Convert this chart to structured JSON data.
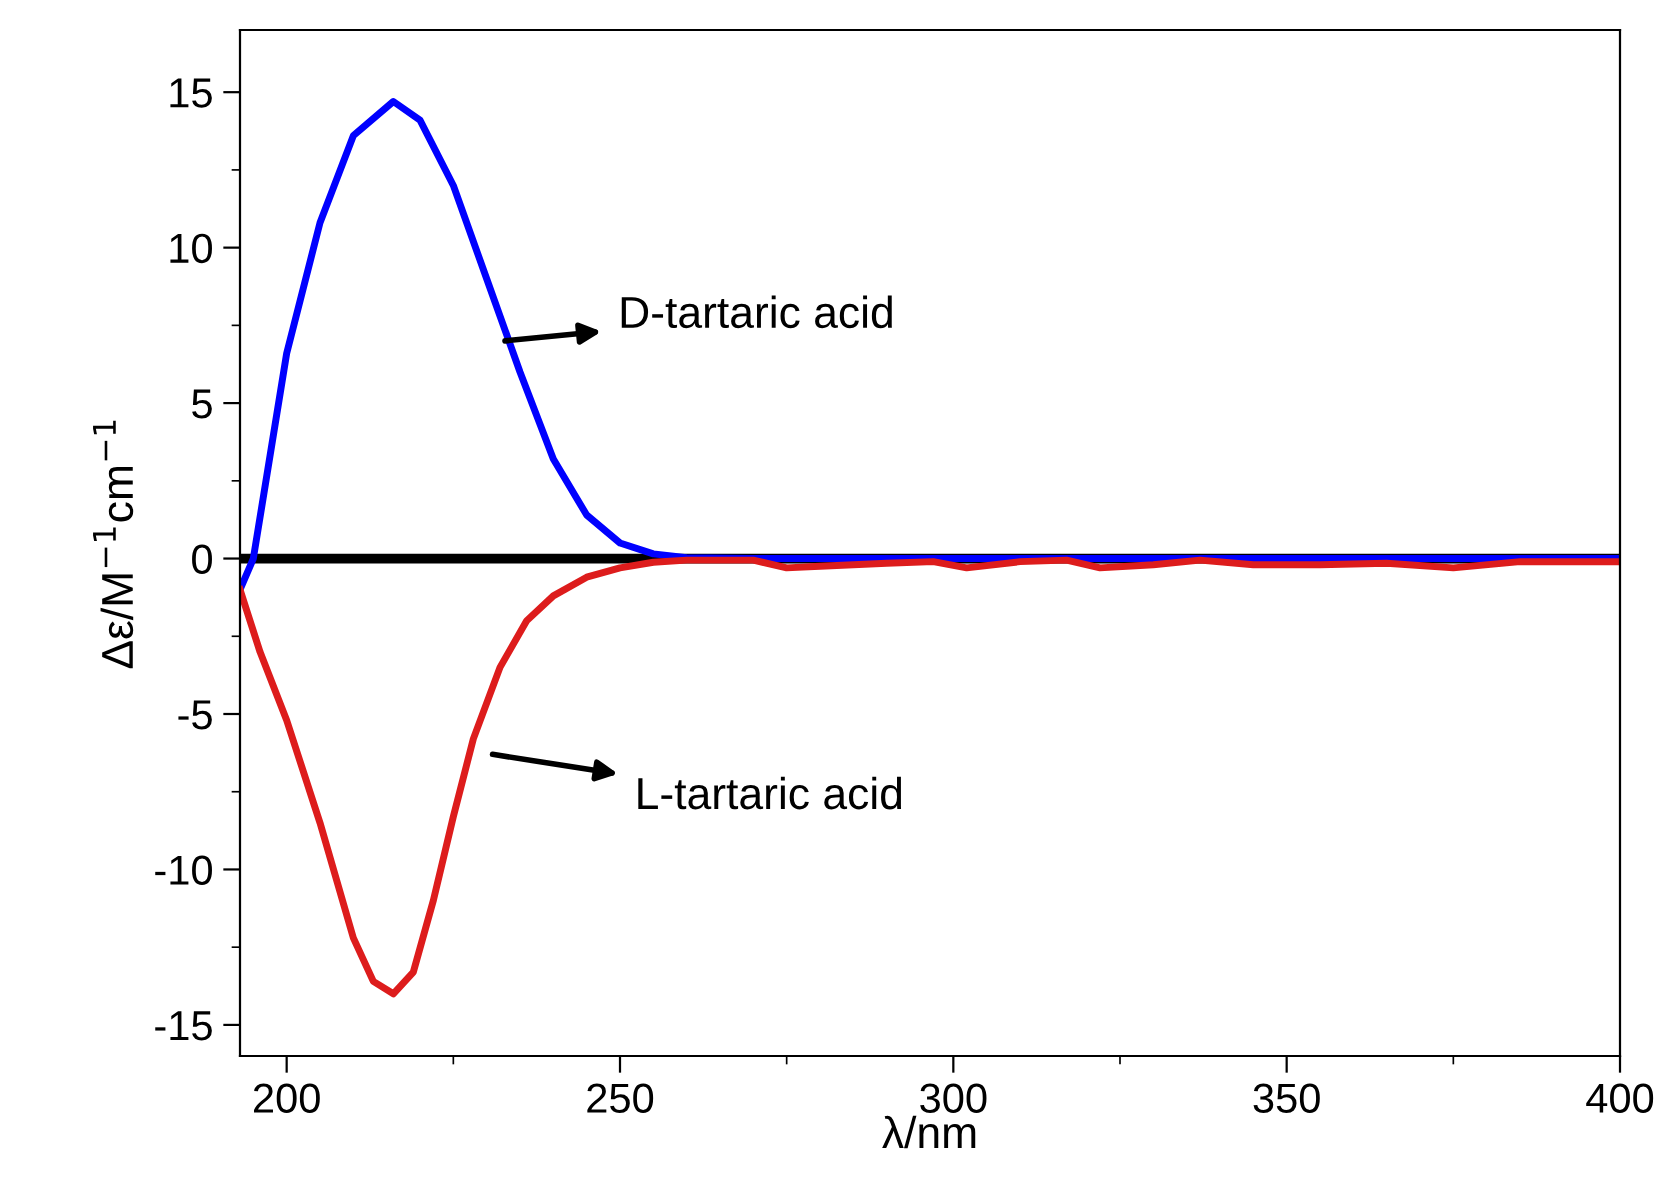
{
  "chart_data": {
    "type": "line",
    "xlabel": "λ/nm",
    "ylabel": "Δε/M$^{−1}$cm$^{−1}$",
    "xlim": [
      193,
      400
    ],
    "xticks": [
      200,
      250,
      300,
      350,
      400
    ],
    "ylim": [
      -16,
      17
    ],
    "yticks": [
      -15,
      -10,
      -5,
      0,
      5,
      10,
      15
    ],
    "grid": false,
    "marker": "none",
    "line_style": "solid",
    "ref_lines": [
      {
        "axis": "y",
        "value": 0,
        "color": "#000000"
      }
    ],
    "series": [
      {
        "color": "#0000ff",
        "x": [
          193,
          195,
          200,
          205,
          210,
          216,
          220,
          225,
          230,
          235,
          240,
          245,
          250,
          255,
          260,
          270,
          300,
          350,
          400
        ],
        "values": [
          -1,
          0,
          6.6,
          10.8,
          13.6,
          14.7,
          14.1,
          12,
          9,
          6,
          3.2,
          1.4,
          0.5,
          0.15,
          0.03,
          0,
          0,
          0,
          0
        ]
      },
      {
        "color": "#dd1c1c",
        "x": [
          193,
          196,
          200,
          205,
          210,
          213,
          216,
          219,
          222,
          225,
          228,
          232,
          236,
          240,
          245,
          250,
          255,
          260,
          270,
          275,
          280,
          290,
          297,
          302,
          310,
          317,
          322,
          330,
          337,
          345,
          355,
          365,
          375,
          385,
          400
        ],
        "values": [
          -1,
          -3,
          -5.2,
          -8.5,
          -12.2,
          -13.6,
          -14,
          -13.3,
          -11,
          -8.3,
          -5.8,
          -3.5,
          -2,
          -1.2,
          -0.6,
          -0.3,
          -0.12,
          -0.05,
          -0.05,
          -0.3,
          -0.25,
          -0.15,
          -0.1,
          -0.3,
          -0.1,
          -0.05,
          -0.3,
          -0.2,
          -0.05,
          -0.2,
          -0.2,
          -0.15,
          -0.3,
          -0.1,
          -0.1
        ]
      }
    ],
    "annotations": [
      "D-tartaric acid",
      "L-tartaric acid"
    ]
  }
}
